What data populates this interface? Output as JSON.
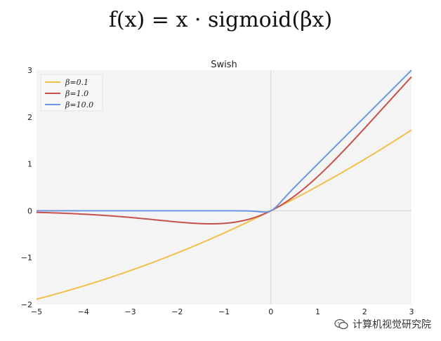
{
  "formula": "f(x) = x · sigmoid(βx)",
  "watermark": "计算机视觉研究院",
  "chart_data": {
    "type": "line",
    "title": "Swish",
    "xlabel": "",
    "ylabel": "",
    "xlim": [
      -5,
      3
    ],
    "ylim": [
      -2,
      3
    ],
    "xticks": [
      -5,
      -4,
      -3,
      -2,
      -1,
      0,
      1,
      2,
      3
    ],
    "yticks": [
      -2,
      -1,
      0,
      1,
      2,
      3
    ],
    "xtick_labels": [
      "−5",
      "−4",
      "−3",
      "−2",
      "−1",
      "0",
      "1",
      "2",
      "3"
    ],
    "ytick_labels": [
      "−2",
      "−1",
      "0",
      "1",
      "2",
      "3"
    ],
    "grid": false,
    "legend_position": "top-left",
    "background_color": "#f4f4f4",
    "series": [
      {
        "name": "β=0.1",
        "beta": 0.1,
        "color": "#f2c04a",
        "x": [
          -5,
          -4,
          -3,
          -2,
          -1,
          0,
          1,
          2,
          3
        ],
        "y": [
          -1.89,
          -1.6,
          -1.28,
          -0.9,
          -0.48,
          0.0,
          0.52,
          1.1,
          1.72
        ]
      },
      {
        "name": "β=1.0",
        "beta": 1.0,
        "color": "#c8504a",
        "x": [
          -5,
          -4,
          -3,
          -2,
          -1.28,
          -1,
          0,
          1,
          2,
          3
        ],
        "y": [
          -0.03,
          -0.07,
          -0.14,
          -0.24,
          -0.28,
          -0.27,
          0.0,
          0.73,
          1.76,
          2.86
        ]
      },
      {
        "name": "β=10.0",
        "beta": 10.0,
        "color": "#6b96e0",
        "x": [
          -5,
          -1,
          -0.5,
          -0.2,
          0,
          0.2,
          1,
          3
        ],
        "y": [
          0.0,
          0.0,
          -0.003,
          -0.024,
          0.0,
          0.18,
          1.0,
          3.0
        ]
      }
    ]
  }
}
